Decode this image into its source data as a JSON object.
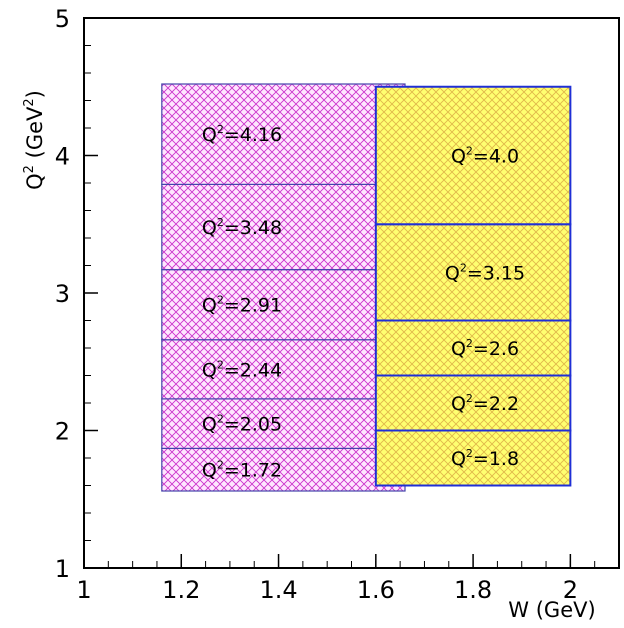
{
  "chart_data": {
    "type": "rect-bins",
    "x_axis": {
      "label": "W (GeV)",
      "range": [
        1.0,
        2.1
      ],
      "ticks": [
        1,
        1.2,
        1.4,
        1.6,
        1.8,
        2
      ],
      "tick_labels": [
        "1",
        "1.2",
        "1.4",
        "1.6",
        "1.8",
        "2"
      ]
    },
    "y_axis": {
      "label_base": "Q",
      "label_sup": "2",
      "label_rest": " (GeV",
      "label_sup2": "2",
      "label_end": ")",
      "range": [
        1.0,
        5.0
      ],
      "ticks": [
        1,
        2,
        3,
        4,
        5
      ],
      "tick_labels": [
        "1",
        "2",
        "3",
        "4",
        "5"
      ]
    },
    "grid": false,
    "series": [
      {
        "fill_color": "#cc33cc",
        "edge_color": "#4444aa",
        "hatch": "crosshatch",
        "w_range": [
          1.16,
          1.66
        ],
        "bins": [
          {
            "q2_range": [
              1.56,
              1.87
            ],
            "label": "1.72"
          },
          {
            "q2_range": [
              1.87,
              2.23
            ],
            "label": "2.05"
          },
          {
            "q2_range": [
              2.23,
              2.66
            ],
            "label": "2.44"
          },
          {
            "q2_range": [
              2.66,
              3.17
            ],
            "label": "2.91"
          },
          {
            "q2_range": [
              3.17,
              3.79
            ],
            "label": "3.48"
          },
          {
            "q2_range": [
              3.79,
              4.52
            ],
            "label": "4.16"
          }
        ]
      },
      {
        "fill_color": "#ffff66",
        "hatch_color": "#e6c84a",
        "edge_color": "#1f2fd6",
        "hatch": "crosshatch",
        "w_range": [
          1.6,
          2.0
        ],
        "bins": [
          {
            "q2_range": [
              1.6,
              2.0
            ],
            "label": "1.8"
          },
          {
            "q2_range": [
              2.0,
              2.4
            ],
            "label": "2.2"
          },
          {
            "q2_range": [
              2.4,
              2.8
            ],
            "label": "2.6"
          },
          {
            "q2_range": [
              2.8,
              3.5
            ],
            "label": "3.15"
          },
          {
            "q2_range": [
              3.5,
              4.5
            ],
            "label": "4.0"
          }
        ]
      }
    ],
    "bin_label_prefix": "Q",
    "bin_label_sup": "2",
    "bin_label_eq": "="
  }
}
